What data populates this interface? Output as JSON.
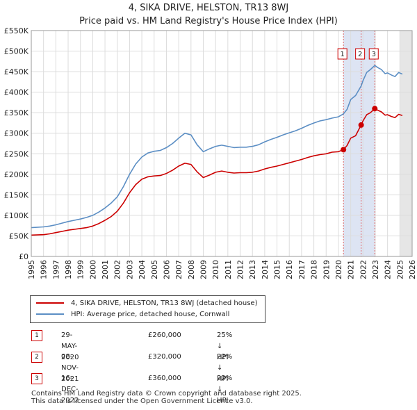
{
  "header": {
    "title": "4, SIKA DRIVE, HELSTON, TR13 8WJ",
    "subtitle": "Price paid vs. HM Land Registry's House Price Index (HPI)"
  },
  "chart_data": {
    "type": "line",
    "xlim": [
      1995,
      2026
    ],
    "ylim": [
      0,
      550000
    ],
    "x_ticks": [
      "1995",
      "1996",
      "1997",
      "1998",
      "1999",
      "2000",
      "2001",
      "2002",
      "2003",
      "2004",
      "2005",
      "2006",
      "2007",
      "2008",
      "2009",
      "2010",
      "2011",
      "2012",
      "2013",
      "2014",
      "2015",
      "2016",
      "2017",
      "2018",
      "2019",
      "2020",
      "2021",
      "2022",
      "2023",
      "2024",
      "2025",
      "2026"
    ],
    "y_ticks": [
      {
        "value": 0,
        "label": "£0"
      },
      {
        "value": 50000,
        "label": "£50K"
      },
      {
        "value": 100000,
        "label": "£100K"
      },
      {
        "value": 150000,
        "label": "£150K"
      },
      {
        "value": 200000,
        "label": "£200K"
      },
      {
        "value": 250000,
        "label": "£250K"
      },
      {
        "value": 300000,
        "label": "£300K"
      },
      {
        "value": 350000,
        "label": "£350K"
      },
      {
        "value": 400000,
        "label": "£400K"
      },
      {
        "value": 450000,
        "label": "£450K"
      },
      {
        "value": 500000,
        "label": "£500K"
      },
      {
        "value": 550000,
        "label": "£550K"
      }
    ],
    "series": [
      {
        "name": "4, SIKA DRIVE, HELSTON, TR13 8WJ (detached house)",
        "color": "#cc0000",
        "x": [
          1995.0,
          1996.0,
          1996.5,
          1997.0,
          1997.5,
          1998.0,
          1998.5,
          1999.0,
          1999.5,
          2000.0,
          2000.5,
          2001.0,
          2001.5,
          2002.0,
          2002.5,
          2003.0,
          2003.5,
          2004.0,
          2004.5,
          2005.0,
          2005.5,
          2006.0,
          2006.5,
          2007.0,
          2007.5,
          2008.0,
          2008.5,
          2009.0,
          2009.5,
          2010.0,
          2010.5,
          2011.0,
          2011.5,
          2012.0,
          2012.5,
          2013.0,
          2013.5,
          2014.0,
          2014.5,
          2015.0,
          2015.5,
          2016.0,
          2016.5,
          2017.0,
          2017.5,
          2018.0,
          2018.5,
          2019.0,
          2019.5,
          2020.0,
          2020.41,
          2020.7,
          2021.0,
          2021.4,
          2021.85,
          2022.0,
          2022.3,
          2022.6,
          2022.96,
          2023.2,
          2023.5,
          2023.8,
          2024.0,
          2024.3,
          2024.6,
          2024.9,
          2025.2
        ],
        "y": [
          52000,
          53000,
          55000,
          58000,
          61000,
          64000,
          66000,
          68000,
          70000,
          74000,
          80000,
          88000,
          97000,
          110000,
          130000,
          155000,
          175000,
          188000,
          194000,
          196000,
          197000,
          202000,
          210000,
          220000,
          227000,
          224000,
          206000,
          192000,
          198000,
          205000,
          208000,
          205000,
          203000,
          204000,
          204000,
          205000,
          208000,
          213000,
          217000,
          220000,
          224000,
          228000,
          232000,
          236000,
          241000,
          245000,
          248000,
          250000,
          254000,
          255000,
          260000,
          270000,
          288000,
          294000,
          320000,
          330000,
          345000,
          350000,
          360000,
          356000,
          352000,
          344000,
          345000,
          341000,
          338000,
          346000,
          343000
        ]
      },
      {
        "name": "HPI: Average price, detached house, Cornwall",
        "color": "#5b8ec4",
        "x": [
          1995.0,
          1996.0,
          1996.5,
          1997.0,
          1997.5,
          1998.0,
          1998.5,
          1999.0,
          1999.5,
          2000.0,
          2000.5,
          2001.0,
          2001.5,
          2002.0,
          2002.5,
          2003.0,
          2003.5,
          2004.0,
          2004.5,
          2005.0,
          2005.5,
          2006.0,
          2006.5,
          2007.0,
          2007.5,
          2008.0,
          2008.5,
          2009.0,
          2009.5,
          2010.0,
          2010.5,
          2011.0,
          2011.5,
          2012.0,
          2012.5,
          2013.0,
          2013.5,
          2014.0,
          2014.5,
          2015.0,
          2015.5,
          2016.0,
          2016.5,
          2017.0,
          2017.5,
          2018.0,
          2018.5,
          2019.0,
          2019.5,
          2020.0,
          2020.4,
          2020.7,
          2021.0,
          2021.4,
          2021.85,
          2022.0,
          2022.3,
          2022.6,
          2022.96,
          2023.2,
          2023.5,
          2023.8,
          2024.0,
          2024.3,
          2024.6,
          2024.9,
          2025.2
        ],
        "y": [
          70000,
          72000,
          74000,
          77000,
          81000,
          85000,
          88000,
          91000,
          95000,
          100000,
          108000,
          118000,
          130000,
          145000,
          170000,
          200000,
          225000,
          242000,
          252000,
          256000,
          258000,
          265000,
          275000,
          288000,
          300000,
          296000,
          272000,
          255000,
          262000,
          268000,
          271000,
          268000,
          265000,
          266000,
          266000,
          268000,
          272000,
          279000,
          285000,
          290000,
          296000,
          301000,
          306000,
          312000,
          319000,
          325000,
          330000,
          333000,
          337000,
          340000,
          347000,
          358000,
          382000,
          392000,
          415000,
          428000,
          448000,
          455000,
          465000,
          460000,
          455000,
          445000,
          447000,
          442000,
          438000,
          448000,
          444000
        ]
      }
    ],
    "transactions": [
      {
        "label": "1",
        "x": 2020.41,
        "price": 260000,
        "date": "29-MAY-2020",
        "price_text": "£260,000",
        "hpi_text": "25% ↓ HPI"
      },
      {
        "label": "2",
        "x": 2021.85,
        "price": 320000,
        "date": "08-NOV-2021",
        "price_text": "£320,000",
        "hpi_text": "22% ↓ HPI"
      },
      {
        "label": "3",
        "x": 2022.96,
        "price": 360000,
        "date": "16-DEC-2022",
        "price_text": "£360,000",
        "hpi_text": "22% ↓ HPI"
      }
    ],
    "highlight_span": [
      2020.41,
      2022.96
    ],
    "future_span": [
      2025.0,
      2026.0
    ],
    "grid": true
  },
  "footer": {
    "line1": "Contains HM Land Registry data © Crown copyright and database right 2025.",
    "line2": "This data is licensed under the Open Government Licence v3.0."
  }
}
